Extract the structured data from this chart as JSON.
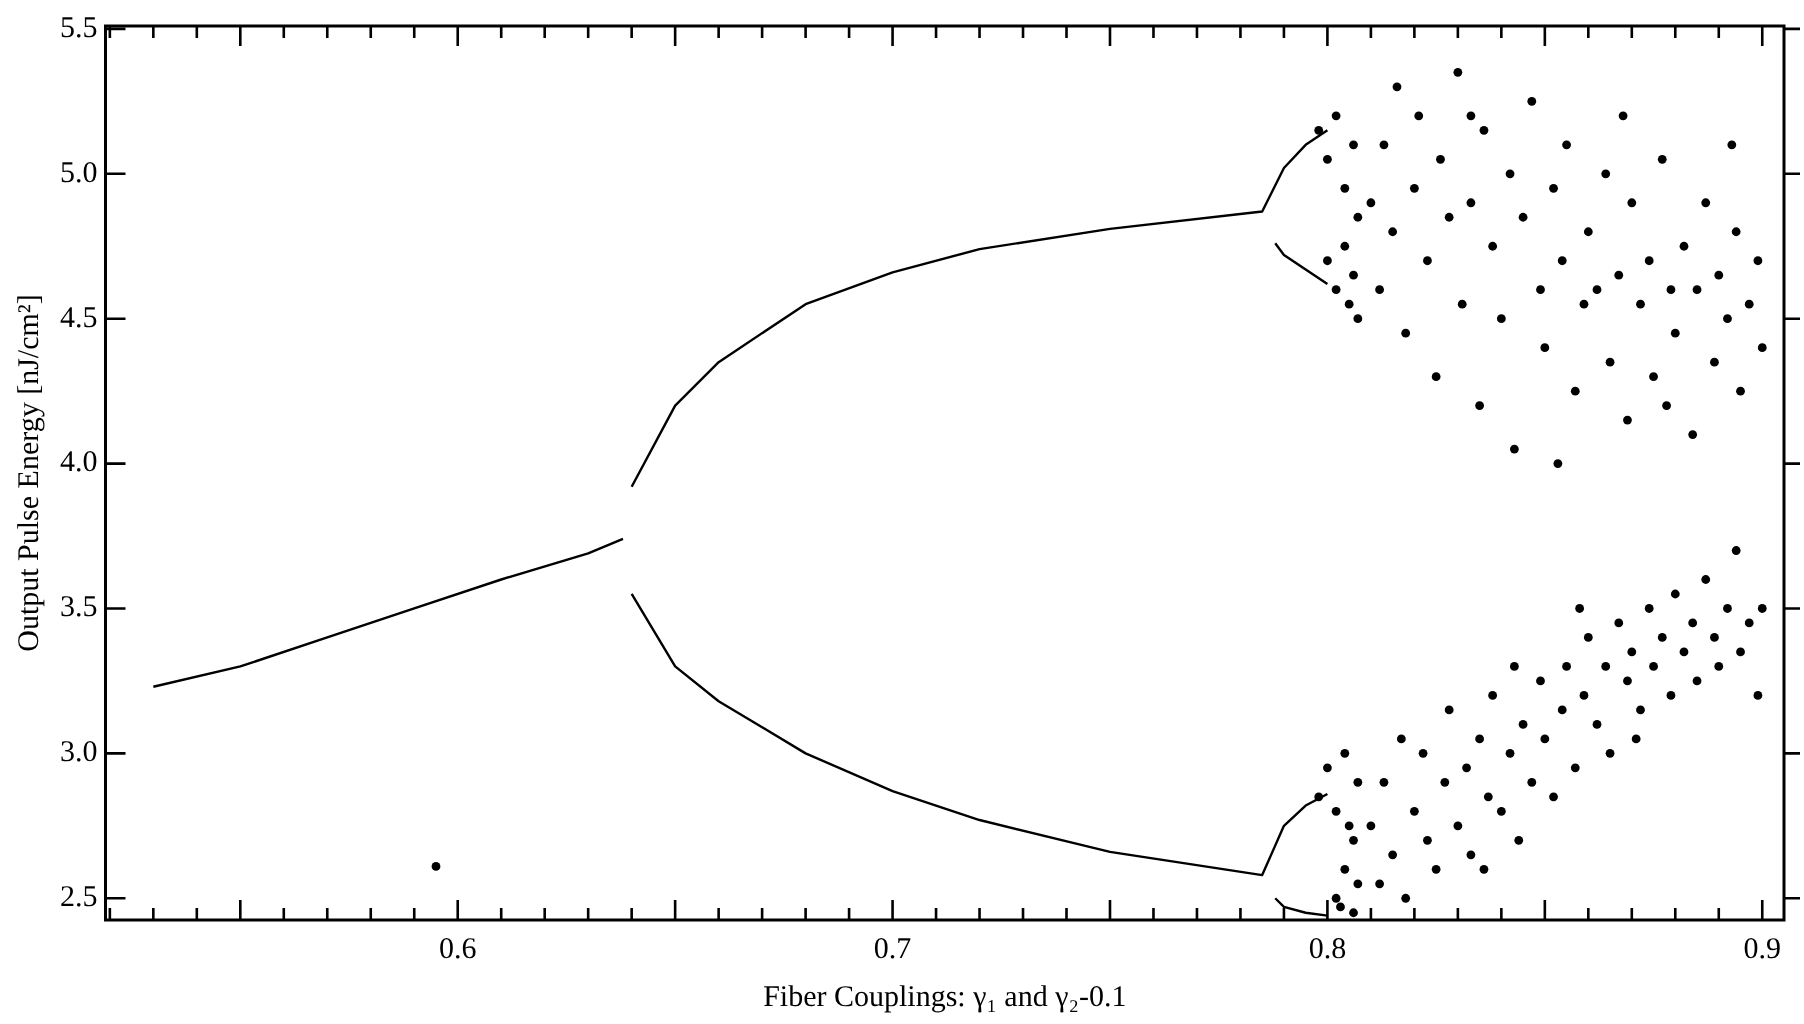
{
  "chart_data": {
    "type": "scatter",
    "xlabel": "Fiber Couplings: γ₁ and γ₂-0.1",
    "ylabel": "Output Pulse Energy [nJ/cm²]",
    "xlim": [
      0.519,
      0.905
    ],
    "ylim": [
      2.425,
      5.51
    ],
    "xticks": [
      {
        "value": 0.52,
        "label": null
      },
      {
        "value": 0.53,
        "label": null
      },
      {
        "value": 0.54,
        "label": null
      },
      {
        "value": 0.55,
        "label": null
      },
      {
        "value": 0.56,
        "label": null
      },
      {
        "value": 0.57,
        "label": null
      },
      {
        "value": 0.58,
        "label": null
      },
      {
        "value": 0.59,
        "label": null
      },
      0.6,
      {
        "value": 0.61,
        "label": null
      },
      {
        "value": 0.62,
        "label": null
      },
      {
        "value": 0.63,
        "label": null
      },
      {
        "value": 0.64,
        "label": null
      },
      {
        "value": 0.65,
        "label": null
      },
      {
        "value": 0.66,
        "label": null
      },
      {
        "value": 0.67,
        "label": null
      },
      {
        "value": 0.68,
        "label": null
      },
      {
        "value": 0.69,
        "label": null
      },
      0.7,
      {
        "value": 0.71,
        "label": null
      },
      {
        "value": 0.72,
        "label": null
      },
      {
        "value": 0.73,
        "label": null
      },
      {
        "value": 0.74,
        "label": null
      },
      {
        "value": 0.75,
        "label": null
      },
      {
        "value": 0.76,
        "label": null
      },
      {
        "value": 0.77,
        "label": null
      },
      {
        "value": 0.78,
        "label": null
      },
      {
        "value": 0.79,
        "label": null
      },
      0.8,
      {
        "value": 0.81,
        "label": null
      },
      {
        "value": 0.82,
        "label": null
      },
      {
        "value": 0.83,
        "label": null
      },
      {
        "value": 0.84,
        "label": null
      },
      {
        "value": 0.85,
        "label": null
      },
      {
        "value": 0.86,
        "label": null
      },
      {
        "value": 0.87,
        "label": null
      },
      {
        "value": 0.88,
        "label": null
      },
      {
        "value": 0.89,
        "label": null
      },
      0.9
    ],
    "yticks": [
      2.5,
      {
        "value": 3,
        "label": "3.0"
      },
      3.5,
      {
        "value": 4,
        "label": "4.0"
      },
      4.5,
      {
        "value": 5,
        "label": "5.0"
      },
      5.5
    ],
    "grid": false,
    "legend": false,
    "series": [
      {
        "type": "line",
        "color": "#000000",
        "marker": "none",
        "x": [
          0.53,
          0.55,
          0.57,
          0.59,
          0.61,
          0.63,
          0.638
        ],
        "values": [
          3.23,
          3.3,
          3.4,
          3.5,
          3.6,
          3.69,
          3.74
        ]
      },
      {
        "type": "line",
        "color": "#000000",
        "marker": "none",
        "x": [
          0.64,
          0.65,
          0.66,
          0.68,
          0.7,
          0.72,
          0.75,
          0.785,
          0.79,
          0.795,
          0.8
        ],
        "values": [
          3.92,
          4.2,
          4.35,
          4.55,
          4.66,
          4.74,
          4.81,
          4.87,
          5.02,
          5.1,
          5.15
        ]
      },
      {
        "type": "line",
        "color": "#000000",
        "marker": "none",
        "x": [
          0.788,
          0.79,
          0.795,
          0.8
        ],
        "values": [
          4.76,
          4.72,
          4.67,
          4.62
        ]
      },
      {
        "type": "line",
        "color": "#000000",
        "marker": "none",
        "x": [
          0.64,
          0.65,
          0.66,
          0.68,
          0.7,
          0.72,
          0.75,
          0.785,
          0.79,
          0.795,
          0.8
        ],
        "values": [
          3.55,
          3.3,
          3.18,
          3.0,
          2.87,
          2.77,
          2.66,
          2.58,
          2.75,
          2.82,
          2.86
        ]
      },
      {
        "type": "line",
        "color": "#000000",
        "marker": "none",
        "x": [
          0.788,
          0.79,
          0.795,
          0.8
        ],
        "values": [
          2.5,
          2.47,
          2.45,
          2.44
        ]
      },
      {
        "color": "#000000",
        "marker": "circle",
        "x": [
          0.595,
          0.798,
          0.8,
          0.802,
          0.804,
          0.806,
          0.807,
          0.8,
          0.802,
          0.804,
          0.805,
          0.807,
          0.806,
          0.798,
          0.8,
          0.802,
          0.804,
          0.806,
          0.807,
          0.803,
          0.802,
          0.804,
          0.806,
          0.807,
          0.805
        ],
        "values": [
          2.61,
          5.15,
          5.05,
          5.2,
          4.95,
          5.1,
          4.85,
          4.7,
          4.6,
          4.75,
          4.55,
          4.5,
          4.65,
          2.85,
          2.95,
          2.8,
          3.0,
          2.7,
          2.9,
          2.47,
          2.5,
          2.6,
          2.45,
          2.55,
          2.75
        ]
      },
      {
        "color": "#000000",
        "marker": "circle",
        "x": [
          0.81,
          0.812,
          0.813,
          0.815,
          0.816,
          0.818,
          0.82,
          0.821,
          0.823,
          0.825,
          0.826,
          0.828,
          0.83,
          0.831,
          0.833,
          0.835,
          0.836,
          0.838,
          0.84,
          0.842,
          0.843,
          0.845,
          0.847,
          0.849,
          0.85,
          0.852,
          0.854,
          0.855,
          0.857,
          0.859,
          0.86,
          0.862,
          0.864,
          0.865,
          0.867,
          0.869,
          0.87,
          0.872,
          0.874,
          0.875,
          0.877,
          0.879,
          0.88,
          0.882,
          0.884,
          0.885,
          0.887,
          0.889,
          0.89,
          0.892,
          0.894,
          0.895,
          0.897,
          0.899,
          0.9,
          0.853,
          0.833,
          0.868,
          0.893,
          0.878
        ],
        "values": [
          4.9,
          4.6,
          5.1,
          4.8,
          5.3,
          4.45,
          4.95,
          5.2,
          4.7,
          4.3,
          5.05,
          4.85,
          5.35,
          4.55,
          4.9,
          4.2,
          5.15,
          4.75,
          4.5,
          5.0,
          4.05,
          4.85,
          5.25,
          4.6,
          4.4,
          4.95,
          4.7,
          5.1,
          4.25,
          4.55,
          4.8,
          4.6,
          5.0,
          4.35,
          4.65,
          4.15,
          4.9,
          4.55,
          4.7,
          4.3,
          5.05,
          4.6,
          4.45,
          4.75,
          4.1,
          4.6,
          4.9,
          4.35,
          4.65,
          4.5,
          4.8,
          4.25,
          4.55,
          4.7,
          4.4,
          4.0,
          5.2,
          5.2,
          5.1,
          4.2
        ]
      },
      {
        "color": "#000000",
        "marker": "circle",
        "x": [
          0.81,
          0.812,
          0.813,
          0.815,
          0.817,
          0.818,
          0.82,
          0.822,
          0.823,
          0.825,
          0.827,
          0.828,
          0.83,
          0.832,
          0.833,
          0.835,
          0.837,
          0.838,
          0.84,
          0.842,
          0.844,
          0.845,
          0.847,
          0.849,
          0.85,
          0.852,
          0.854,
          0.855,
          0.857,
          0.859,
          0.86,
          0.862,
          0.864,
          0.865,
          0.867,
          0.869,
          0.87,
          0.872,
          0.874,
          0.875,
          0.877,
          0.879,
          0.88,
          0.882,
          0.884,
          0.885,
          0.887,
          0.889,
          0.89,
          0.892,
          0.894,
          0.895,
          0.897,
          0.899,
          0.9,
          0.843,
          0.858,
          0.836,
          0.871
        ],
        "values": [
          2.75,
          2.55,
          2.9,
          2.65,
          3.05,
          2.5,
          2.8,
          3.0,
          2.7,
          2.6,
          2.9,
          3.15,
          2.75,
          2.95,
          2.65,
          3.05,
          2.85,
          3.2,
          2.8,
          3.0,
          2.7,
          3.1,
          2.9,
          3.25,
          3.05,
          2.85,
          3.15,
          3.3,
          2.95,
          3.2,
          3.4,
          3.1,
          3.3,
          3.0,
          3.45,
          3.25,
          3.35,
          3.15,
          3.5,
          3.3,
          3.4,
          3.2,
          3.55,
          3.35,
          3.45,
          3.25,
          3.6,
          3.4,
          3.3,
          3.5,
          3.7,
          3.35,
          3.45,
          3.2,
          3.5,
          3.3,
          3.5,
          2.6,
          3.05
        ]
      }
    ]
  }
}
